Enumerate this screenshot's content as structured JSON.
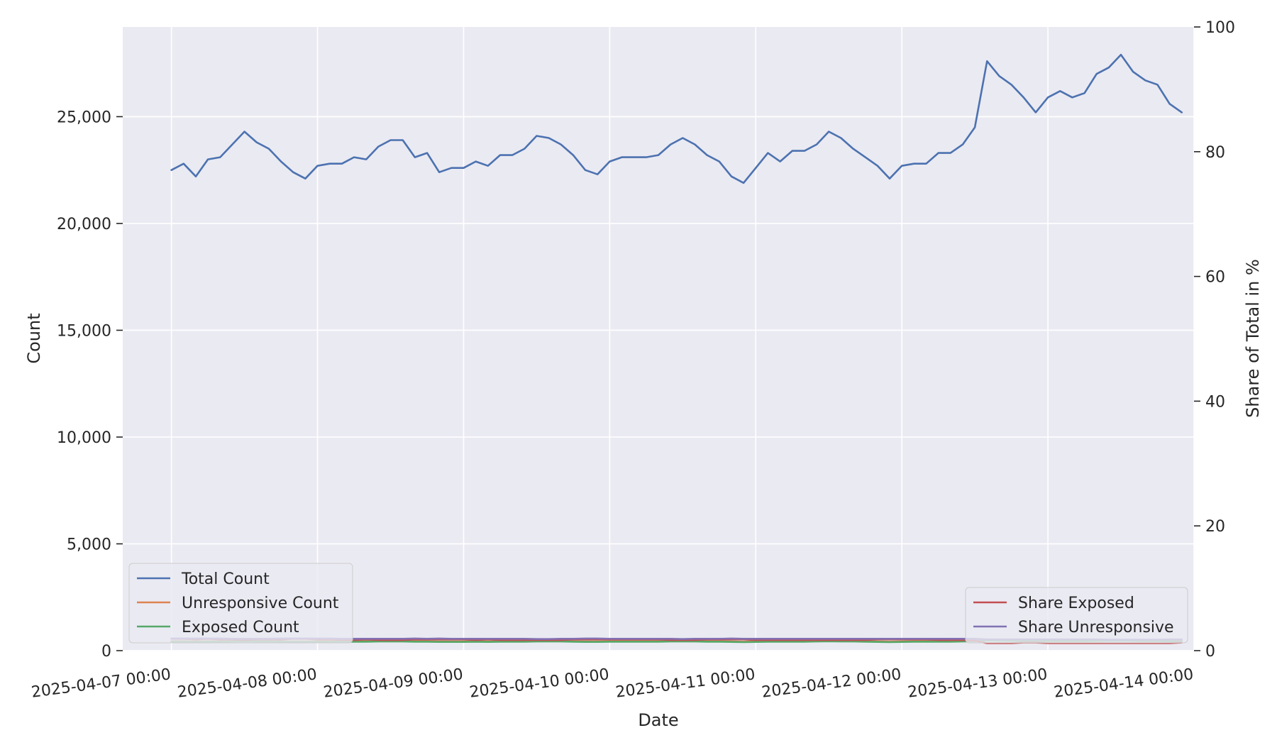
{
  "chart_data": {
    "type": "line",
    "x_axis": {
      "label": "Date",
      "ticks": [
        "2025-04-07 00:00",
        "2025-04-08 00:00",
        "2025-04-09 00:00",
        "2025-04-10 00:00",
        "2025-04-11 00:00",
        "2025-04-12 00:00",
        "2025-04-13 00:00",
        "2025-04-14 00:00"
      ],
      "range": [
        "2025-04-06 16:00",
        "2025-04-14 00:00"
      ]
    },
    "y_axis_left": {
      "label": "Count",
      "ticks": [
        "0",
        "5,000",
        "10,000",
        "15,000",
        "20,000",
        "25,000"
      ],
      "range": [
        0,
        29200
      ]
    },
    "y_axis_right": {
      "label": "Share of Total in %",
      "ticks": [
        "0",
        "20",
        "40",
        "60",
        "80",
        "100"
      ],
      "range": [
        0,
        100
      ]
    },
    "grid": true,
    "x": {
      "start": "2025-04-07 00:00",
      "interval_hours": 2,
      "points": 84
    },
    "series": [
      {
        "name": "Total Count",
        "axis": "left",
        "color": "#4c72b0",
        "values": [
          22500,
          22800,
          22200,
          23000,
          23100,
          23700,
          24300,
          23800,
          23500,
          22900,
          22400,
          22100,
          22700,
          22800,
          22800,
          23100,
          23000,
          23600,
          23900,
          23900,
          23100,
          23300,
          22400,
          22600,
          22600,
          22900,
          22700,
          23200,
          23200,
          23500,
          24100,
          24000,
          23700,
          23200,
          22500,
          22300,
          22900,
          23100,
          23100,
          23100,
          23200,
          23700,
          24000,
          23700,
          23200,
          22900,
          22200,
          21900,
          22600,
          23300,
          22900,
          23400,
          23400,
          23700,
          24300,
          24000,
          23500,
          23100,
          22700,
          22100,
          22700,
          22800,
          22800,
          23300,
          23300,
          23700,
          24500,
          27600,
          26900,
          26500,
          25900,
          25200,
          25900,
          26200,
          25900,
          26100,
          27000,
          27300,
          27900,
          27100,
          26700,
          26500,
          25600,
          25200
        ]
      },
      {
        "name": "Unresponsive Count",
        "axis": "left",
        "color": "#dd8452",
        "values": [
          440,
          440,
          430,
          440,
          440,
          450,
          460,
          450,
          450,
          440,
          430,
          430,
          440,
          440,
          440,
          440,
          440,
          450,
          450,
          450,
          440,
          440,
          430,
          430,
          430,
          440,
          430,
          440,
          440,
          440,
          450,
          450,
          450,
          440,
          430,
          430,
          440,
          440,
          440,
          440,
          440,
          450,
          450,
          450,
          440,
          440,
          430,
          420,
          430,
          440,
          440,
          440,
          440,
          450,
          460,
          450,
          450,
          440,
          430,
          420,
          430,
          440,
          440,
          440,
          440,
          450,
          460,
          500,
          490,
          480,
          470,
          460,
          470,
          470,
          470,
          470,
          480,
          480,
          490,
          480,
          470,
          470,
          460,
          450
        ]
      },
      {
        "name": "Exposed Count",
        "axis": "left",
        "color": "#55a868",
        "values": [
          420,
          420,
          410,
          420,
          420,
          430,
          440,
          430,
          430,
          420,
          410,
          410,
          420,
          420,
          420,
          420,
          420,
          430,
          430,
          430,
          420,
          420,
          410,
          410,
          410,
          420,
          410,
          420,
          420,
          420,
          430,
          430,
          430,
          420,
          410,
          410,
          420,
          420,
          420,
          420,
          420,
          430,
          430,
          430,
          420,
          420,
          410,
          400,
          410,
          420,
          420,
          420,
          420,
          430,
          440,
          430,
          430,
          420,
          410,
          400,
          410,
          420,
          420,
          420,
          420,
          430,
          440,
          480,
          470,
          460,
          450,
          440,
          450,
          450,
          450,
          450,
          460,
          460,
          470,
          460,
          450,
          450,
          440,
          430
        ]
      },
      {
        "name": "Share Exposed",
        "axis": "right",
        "color": "#c44e52",
        "values": [
          1.9,
          1.9,
          1.8,
          1.9,
          1.8,
          1.8,
          1.7,
          1.8,
          1.8,
          1.8,
          1.9,
          1.9,
          1.8,
          1.8,
          1.7,
          1.7,
          1.8,
          1.7,
          1.7,
          1.7,
          1.8,
          1.8,
          1.8,
          1.8,
          1.8,
          1.7,
          1.8,
          1.7,
          1.7,
          1.7,
          1.7,
          1.7,
          1.7,
          1.8,
          1.8,
          1.8,
          1.8,
          1.8,
          1.8,
          1.8,
          1.8,
          1.7,
          1.7,
          1.7,
          1.8,
          1.8,
          1.8,
          1.8,
          1.7,
          1.7,
          1.7,
          1.7,
          1.7,
          1.7,
          1.7,
          1.7,
          1.7,
          1.7,
          1.8,
          1.8,
          1.8,
          1.8,
          1.8,
          1.7,
          1.7,
          1.7,
          1.6,
          1.2,
          1.2,
          1.2,
          1.3,
          1.3,
          1.2,
          1.2,
          1.2,
          1.2,
          1.2,
          1.2,
          1.2,
          1.2,
          1.2,
          1.2,
          1.2,
          1.3
        ]
      },
      {
        "name": "Share Unresponsive",
        "axis": "right",
        "color": "#8172b3",
        "values": [
          1.95,
          1.95,
          1.95,
          1.95,
          1.95,
          1.9,
          1.9,
          1.9,
          1.9,
          1.95,
          1.95,
          1.95,
          1.95,
          1.95,
          1.9,
          1.9,
          1.9,
          1.9,
          1.9,
          1.9,
          1.95,
          1.9,
          1.95,
          1.9,
          1.9,
          1.9,
          1.9,
          1.9,
          1.9,
          1.9,
          1.85,
          1.85,
          1.9,
          1.9,
          1.95,
          1.95,
          1.9,
          1.9,
          1.9,
          1.9,
          1.9,
          1.9,
          1.85,
          1.9,
          1.9,
          1.9,
          1.95,
          1.9,
          1.9,
          1.9,
          1.9,
          1.9,
          1.9,
          1.9,
          1.9,
          1.9,
          1.9,
          1.9,
          1.9,
          1.9,
          1.9,
          1.9,
          1.9,
          1.9,
          1.9,
          1.9,
          1.9,
          1.8,
          1.8,
          1.8,
          1.8,
          1.8,
          1.8,
          1.8,
          1.8,
          1.8,
          1.8,
          1.75,
          1.75,
          1.75,
          1.75,
          1.75,
          1.8,
          1.8
        ]
      }
    ],
    "legends": [
      {
        "location": "lower-left",
        "entries": [
          "Total Count",
          "Unresponsive Count",
          "Exposed Count"
        ]
      },
      {
        "location": "lower-right",
        "entries": [
          "Share Exposed",
          "Share Unresponsive"
        ]
      }
    ],
    "style": {
      "background": "#ffffff",
      "plot_background": "#eaeaf2",
      "grid_color": "#ffffff",
      "text_color": "#262626"
    }
  }
}
